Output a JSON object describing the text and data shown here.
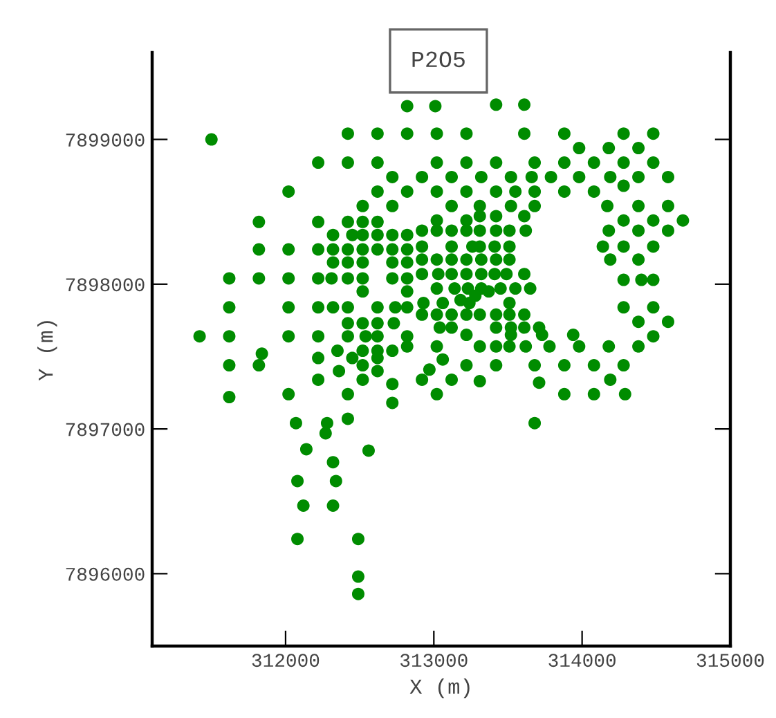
{
  "chart_data": {
    "type": "scatter",
    "title": "P2O5",
    "xlabel": "X (m)",
    "ylabel": "Y (m)",
    "xlim": [
      311100,
      315000
    ],
    "ylim": [
      7895500,
      7899600
    ],
    "xticks": [
      312000,
      313000,
      314000,
      315000
    ],
    "yticks": [
      7896000,
      7897000,
      7898000,
      7899000
    ],
    "grid": false,
    "legend": false,
    "marker": "circle",
    "series": [
      {
        "color": "#008c00",
        "x": [
          311500,
          312420,
          312620,
          312820,
          312220,
          312420,
          312620,
          312720,
          312020,
          312620,
          312820,
          312520,
          312720,
          311820,
          312220,
          312420,
          312520,
          312620,
          312320,
          312450,
          312520,
          312620,
          312720,
          312820,
          311820,
          312020,
          312220,
          312320,
          312420,
          312520,
          312620,
          312720,
          312820,
          312320,
          312420,
          312520,
          312720,
          312820,
          311620,
          311820,
          312020,
          312220,
          312310,
          312420,
          312520,
          312720,
          312820,
          312520,
          312820,
          311620,
          312020,
          312220,
          312320,
          312420,
          312620,
          312740,
          312820,
          312420,
          312520,
          312620,
          312730,
          311420,
          311620,
          312020,
          312220,
          312420,
          312540,
          312620,
          312820,
          312820,
          312350,
          312520,
          312620,
          312720,
          311840,
          312220,
          312450,
          312620,
          311620,
          311820,
          312520,
          312360,
          312620,
          312220,
          312520,
          312720,
          311620,
          312020,
          312420,
          312720,
          312070,
          312280,
          312270,
          312420,
          312140,
          312560,
          312320,
          312080,
          312340,
          312120,
          312320,
          312080,
          312490,
          312490,
          312490,
          312920,
          313120,
          313310,
          313710,
          313020,
          313880,
          314080,
          314290,
          314190,
          313680,
          312820,
          313010,
          313420,
          313610,
          313020,
          313220,
          313610,
          313880,
          314280,
          314480,
          313980,
          314180,
          314380,
          313020,
          313220,
          313420,
          313680,
          313880,
          314080,
          314280,
          314480,
          312920,
          313120,
          313320,
          313520,
          313660,
          313790,
          313980,
          314190,
          314380,
          314580,
          314280,
          313020,
          313220,
          313420,
          313550,
          313680,
          313880,
          314080,
          313120,
          313310,
          313520,
          313680,
          314170,
          314380,
          314580,
          313310,
          313420,
          313610,
          313020,
          313220,
          314280,
          314480,
          314680,
          312920,
          313020,
          313120,
          313220,
          313310,
          313420,
          313510,
          313620,
          314180,
          314380,
          314580,
          312920,
          313120,
          313260,
          313310,
          313410,
          313510,
          314140,
          314280,
          314480,
          312920,
          313020,
          313120,
          313220,
          313320,
          313420,
          313510,
          314190,
          314380,
          312920,
          313030,
          313120,
          313220,
          313320,
          313410,
          313490,
          313610,
          314280,
          314400,
          314480,
          313020,
          313140,
          313230,
          313320,
          313450,
          313550,
          313650,
          313180,
          313280,
          313370,
          312930,
          313060,
          313240,
          313510,
          314280,
          314480,
          312920,
          313020,
          313120,
          313220,
          313310,
          313420,
          313510,
          313610,
          314380,
          314580,
          313040,
          313120,
          313420,
          313520,
          313610,
          313710,
          313220,
          313520,
          313730,
          313940,
          314480,
          313020,
          313310,
          313420,
          313510,
          313620,
          313780,
          313980,
          314180,
          314380,
          313060,
          313220,
          313420,
          313680,
          313880,
          314080,
          314280,
          312970
        ],
        "values": [
          7899000,
          7899040,
          7899040,
          7899040,
          7898840,
          7898840,
          7898840,
          7898740,
          7898640,
          7898640,
          7898640,
          7898540,
          7898540,
          7898430,
          7898430,
          7898430,
          7898430,
          7898430,
          7898340,
          7898340,
          7898340,
          7898340,
          7898340,
          7898340,
          7898240,
          7898240,
          7898240,
          7898240,
          7898240,
          7898240,
          7898240,
          7898240,
          7898240,
          7898150,
          7898150,
          7898150,
          7898150,
          7898150,
          7898040,
          7898040,
          7898040,
          7898040,
          7898040,
          7898040,
          7898040,
          7898040,
          7898040,
          7897950,
          7897950,
          7897840,
          7897840,
          7897840,
          7897840,
          7897840,
          7897840,
          7897840,
          7897840,
          7897730,
          7897730,
          7897730,
          7897730,
          7897640,
          7897640,
          7897640,
          7897640,
          7897640,
          7897640,
          7897640,
          7897640,
          7897570,
          7897540,
          7897540,
          7897540,
          7897540,
          7897520,
          7897490,
          7897490,
          7897490,
          7897440,
          7897440,
          7897440,
          7897400,
          7897400,
          7897340,
          7897340,
          7897310,
          7897220,
          7897240,
          7897240,
          7897180,
          7897040,
          7897040,
          7896970,
          7897070,
          7896860,
          7896850,
          7896770,
          7896640,
          7896640,
          7896470,
          7896470,
          7896240,
          7896240,
          7895980,
          7895860,
          7897340,
          7897340,
          7897330,
          7897320,
          7897240,
          7897240,
          7897240,
          7897240,
          7897340,
          7897040,
          7899230,
          7899230,
          7899240,
          7899240,
          7899040,
          7899040,
          7899040,
          7899040,
          7899040,
          7899040,
          7898940,
          7898940,
          7898940,
          7898840,
          7898840,
          7898840,
          7898840,
          7898840,
          7898840,
          7898840,
          7898840,
          7898740,
          7898740,
          7898740,
          7898740,
          7898740,
          7898740,
          7898740,
          7898740,
          7898740,
          7898740,
          7898680,
          7898640,
          7898640,
          7898640,
          7898640,
          7898640,
          7898640,
          7898640,
          7898540,
          7898540,
          7898540,
          7898540,
          7898540,
          7898540,
          7898540,
          7898470,
          7898470,
          7898470,
          7898440,
          7898440,
          7898440,
          7898440,
          7898440,
          7898370,
          7898370,
          7898370,
          7898370,
          7898370,
          7898370,
          7898370,
          7898370,
          7898370,
          7898370,
          7898370,
          7898260,
          7898260,
          7898260,
          7898260,
          7898260,
          7898260,
          7898260,
          7898260,
          7898260,
          7898170,
          7898170,
          7898170,
          7898170,
          7898170,
          7898170,
          7898170,
          7898170,
          7898170,
          7898070,
          7898070,
          7898070,
          7898070,
          7898070,
          7898070,
          7898070,
          7898070,
          7898030,
          7898030,
          7898030,
          7897970,
          7897970,
          7897970,
          7897970,
          7897970,
          7897970,
          7897970,
          7897890,
          7897920,
          7897950,
          7897870,
          7897870,
          7897870,
          7897870,
          7897840,
          7897840,
          7897790,
          7897790,
          7897790,
          7897790,
          7897790,
          7897790,
          7897790,
          7897790,
          7897740,
          7897740,
          7897700,
          7897700,
          7897700,
          7897700,
          7897700,
          7897700,
          7897650,
          7897650,
          7897650,
          7897650,
          7897640,
          7897570,
          7897570,
          7897570,
          7897570,
          7897570,
          7897570,
          7897570,
          7897570,
          7897570,
          7897480,
          7897440,
          7897440,
          7897440,
          7897440,
          7897440,
          7897440,
          7897410
        ]
      }
    ]
  }
}
